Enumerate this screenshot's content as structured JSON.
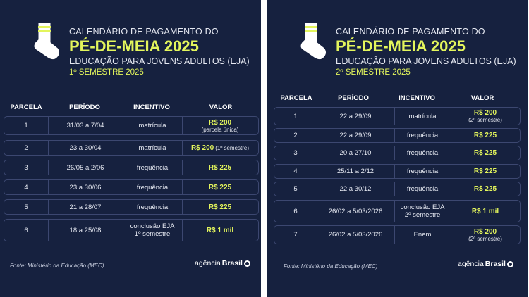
{
  "panels": [
    {
      "title_line1": "CALENDÁRIO DE PAGAMENTO DO",
      "title_line2": "PÉ-DE-MEIA 2025",
      "title_line3": "EDUCAÇÃO PARA JOVENS ADULTOS (EJA)",
      "title_line4": "1º SEMESTRE 2025",
      "columns": [
        "PARCELA",
        "PERÍODO",
        "INCENTIVO",
        "VALOR"
      ],
      "rows": [
        {
          "parcela": "1",
          "periodo": "31/03 a 7/04",
          "incentivo": "matrícula",
          "incentivo2": "",
          "valor": "R$ 200",
          "valor_note": "(parcela única)"
        },
        {
          "parcela": "2",
          "periodo": "23 a 30/04",
          "incentivo": "matrícula",
          "incentivo2": "",
          "valor": "R$ 200",
          "valor_note": "(1º semestre)"
        },
        {
          "parcela": "3",
          "periodo": "26/05 a 2/06",
          "incentivo": "frequência",
          "incentivo2": "",
          "valor": "R$ 225",
          "valor_note": ""
        },
        {
          "parcela": "4",
          "periodo": "23 a 30/06",
          "incentivo": "frequência",
          "incentivo2": "",
          "valor": "R$ 225",
          "valor_note": ""
        },
        {
          "parcela": "5",
          "periodo": "21 a 28/07",
          "incentivo": "frequência",
          "incentivo2": "",
          "valor": "R$ 225",
          "valor_note": ""
        },
        {
          "parcela": "6",
          "periodo": "18 a 25/08",
          "incentivo": "conclusão EJA",
          "incentivo2": "1º semestre",
          "valor": "R$ 1 mil",
          "valor_note": ""
        }
      ],
      "source": "Fonte: Ministério da Educação (MEC)",
      "logo_light": "agência",
      "logo_bold": "Brasil"
    },
    {
      "title_line1": "CALENDÁRIO DE PAGAMENTO DO",
      "title_line2": "PÉ-DE-MEIA 2025",
      "title_line3": "EDUCAÇÃO PARA JOVENS ADULTOS (EJA)",
      "title_line4": "2º SEMESTRE 2025",
      "columns": [
        "PARCELA",
        "PERÍODO",
        "INCENTIVO",
        "VALOR"
      ],
      "rows": [
        {
          "parcela": "1",
          "periodo": "22 a 29/09",
          "incentivo": "matrícula",
          "incentivo2": "",
          "valor": "R$ 200",
          "valor_note": "(2º semestre)"
        },
        {
          "parcela": "2",
          "periodo": "22 a 29/09",
          "incentivo": "frequência",
          "incentivo2": "",
          "valor": "R$ 225",
          "valor_note": ""
        },
        {
          "parcela": "3",
          "periodo": "20 a 27/10",
          "incentivo": "frequência",
          "incentivo2": "",
          "valor": "R$ 225",
          "valor_note": ""
        },
        {
          "parcela": "4",
          "periodo": "25/11 a 2/12",
          "incentivo": "frequência",
          "incentivo2": "",
          "valor": "R$ 225",
          "valor_note": ""
        },
        {
          "parcela": "5",
          "periodo": "22 a 30/12",
          "incentivo": "frequência",
          "incentivo2": "",
          "valor": "R$ 225",
          "valor_note": ""
        },
        {
          "parcela": "6",
          "periodo": "26/02 a 5/03/2026",
          "incentivo": "conclusão EJA",
          "incentivo2": "2º semestre",
          "valor": "R$ 1 mil",
          "valor_note": ""
        },
        {
          "parcela": "7",
          "periodo": "26/02 a 5/03/2026",
          "incentivo": "Enem",
          "incentivo2": "",
          "valor": "R$ 200",
          "valor_note": "(2º semestre)"
        }
      ],
      "source": "Fonte: Ministério da Educação (MEC)",
      "logo_light": "agência",
      "logo_bold": "Brasil"
    }
  ],
  "colors": {
    "background": "#16213f",
    "accent": "#e3f55c",
    "row_border": "#3c4770",
    "divider": "#ffffff"
  },
  "icons": [
    "sock-icon"
  ]
}
